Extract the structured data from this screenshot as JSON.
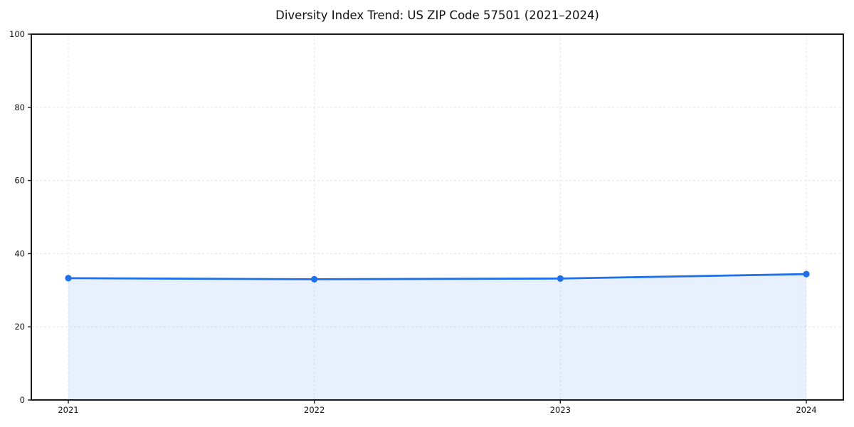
{
  "page": {
    "background": "#ffffff"
  },
  "chart_data": {
    "type": "line",
    "title": "Diversity Index Trend: US ZIP Code 57501 (2021–2024)",
    "categories": [
      "2021",
      "2022",
      "2023",
      "2024"
    ],
    "series": [
      {
        "name": "Diversity Index",
        "values": [
          33.3,
          33.0,
          33.2,
          34.4
        ]
      }
    ],
    "xlabel": "",
    "ylabel": "",
    "ylim": [
      0,
      100
    ],
    "yticks": [
      0,
      20,
      40,
      60,
      80,
      100
    ],
    "grid": "dashed-both-axes",
    "legend": "none",
    "marker": "circle",
    "area_fill": true,
    "colors": {
      "line": "#1f6fe8",
      "marker": "#1f6fe8",
      "fill": "rgba(31,111,232,0.10)",
      "grid": "#e4e4e4",
      "axis": "#1a1a1a",
      "text": "#111111",
      "background": "#ffffff"
    }
  }
}
